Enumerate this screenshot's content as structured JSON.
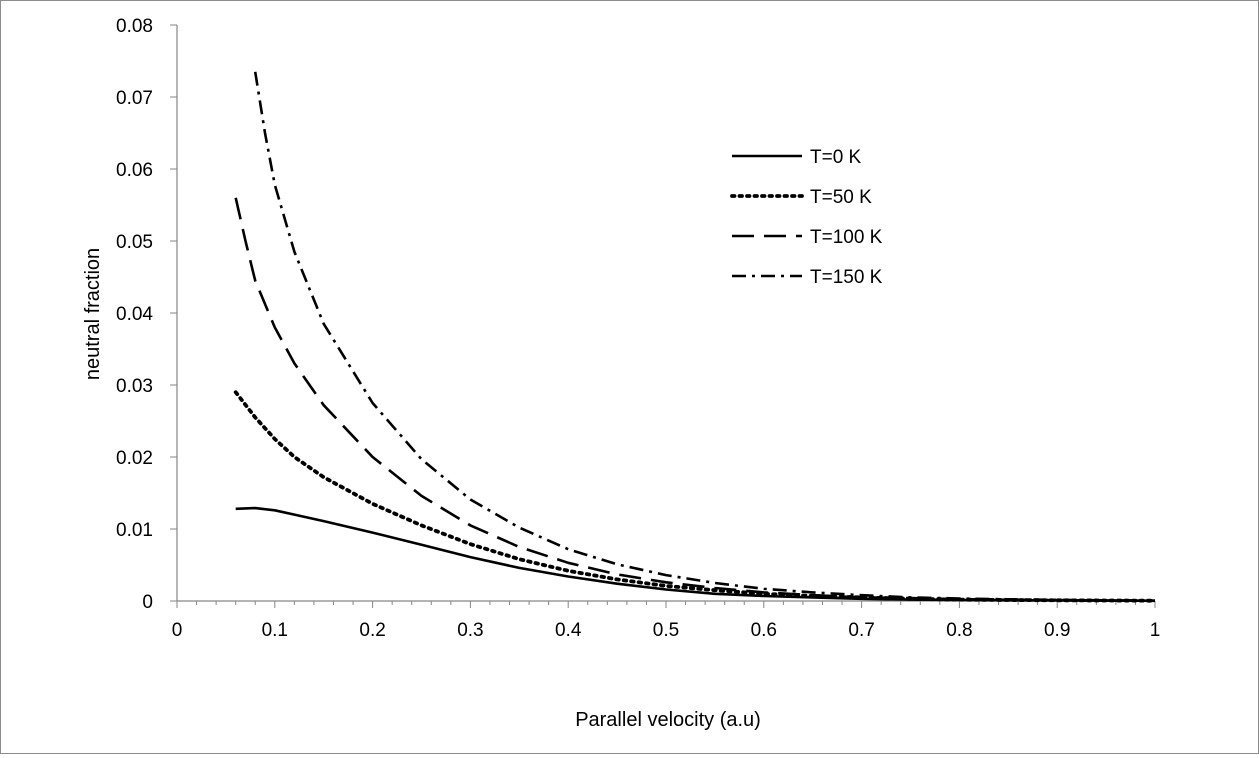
{
  "chart_data": {
    "type": "line",
    "title": "",
    "xlabel": "Parallel  velocity (a.u)",
    "ylabel": "neutral  fraction",
    "xlim": [
      0,
      1
    ],
    "ylim": [
      0,
      0.08
    ],
    "x_ticks": [
      "0",
      "0.1",
      "0.2",
      "0.3",
      "0.4",
      "0.5",
      "0.6",
      "0.7",
      "0.8",
      "0.9",
      "1"
    ],
    "y_ticks": [
      "0",
      "0.01",
      "0.02",
      "0.03",
      "0.04",
      "0.05",
      "0.06",
      "0.07",
      "0.08"
    ],
    "grid": false,
    "legend_position": "upper-right",
    "series": [
      {
        "name": "T=0 K",
        "style": "solid",
        "x": [
          0.06,
          0.08,
          0.1,
          0.12,
          0.15,
          0.2,
          0.25,
          0.3,
          0.35,
          0.4,
          0.45,
          0.5,
          0.55,
          0.6,
          0.65,
          0.7,
          0.75,
          0.8,
          0.85,
          0.9,
          0.95,
          1.0
        ],
        "y": [
          0.0128,
          0.0129,
          0.0126,
          0.012,
          0.0111,
          0.0095,
          0.0078,
          0.0061,
          0.0046,
          0.0034,
          0.0024,
          0.0016,
          0.001,
          0.0007,
          0.0005,
          0.0003,
          0.0002,
          0.00015,
          0.0001,
          8e-05,
          5e-05,
          3e-05
        ]
      },
      {
        "name": "T=50 K",
        "style": "dotted",
        "x": [
          0.06,
          0.08,
          0.1,
          0.12,
          0.15,
          0.2,
          0.25,
          0.3,
          0.35,
          0.4,
          0.45,
          0.5,
          0.55,
          0.6,
          0.65,
          0.7,
          0.75,
          0.8,
          0.85,
          0.9,
          0.95,
          1.0
        ],
        "y": [
          0.029,
          0.0255,
          0.0225,
          0.02,
          0.0172,
          0.0135,
          0.0105,
          0.0079,
          0.0058,
          0.0042,
          0.003,
          0.0021,
          0.0015,
          0.001,
          0.0007,
          0.0005,
          0.0003,
          0.0002,
          0.00014,
          0.0001,
          7e-05,
          4e-05
        ]
      },
      {
        "name": "T=100 K",
        "style": "dashed",
        "x": [
          0.06,
          0.07,
          0.08,
          0.1,
          0.12,
          0.15,
          0.2,
          0.25,
          0.3,
          0.35,
          0.4,
          0.45,
          0.5,
          0.55,
          0.6,
          0.65,
          0.7,
          0.75,
          0.8,
          0.85,
          0.9,
          0.95,
          1.0
        ],
        "y": [
          0.056,
          0.05,
          0.0445,
          0.038,
          0.033,
          0.0272,
          0.02,
          0.0146,
          0.0105,
          0.0075,
          0.0053,
          0.0037,
          0.0026,
          0.0018,
          0.0012,
          0.0008,
          0.0005,
          0.0004,
          0.00025,
          0.00017,
          0.00011,
          7e-05,
          4e-05
        ]
      },
      {
        "name": "T=150 K",
        "style": "dash-dot",
        "x": [
          0.08,
          0.09,
          0.1,
          0.12,
          0.15,
          0.2,
          0.25,
          0.3,
          0.35,
          0.4,
          0.45,
          0.5,
          0.55,
          0.6,
          0.65,
          0.7,
          0.75,
          0.8,
          0.85,
          0.9,
          0.95,
          1.0
        ],
        "y": [
          0.0735,
          0.065,
          0.0578,
          0.0485,
          0.0385,
          0.0275,
          0.0197,
          0.0141,
          0.0102,
          0.0072,
          0.0051,
          0.0036,
          0.0025,
          0.0017,
          0.0012,
          0.0008,
          0.0005,
          0.00035,
          0.00023,
          0.00015,
          0.0001,
          6e-05
        ]
      }
    ]
  }
}
